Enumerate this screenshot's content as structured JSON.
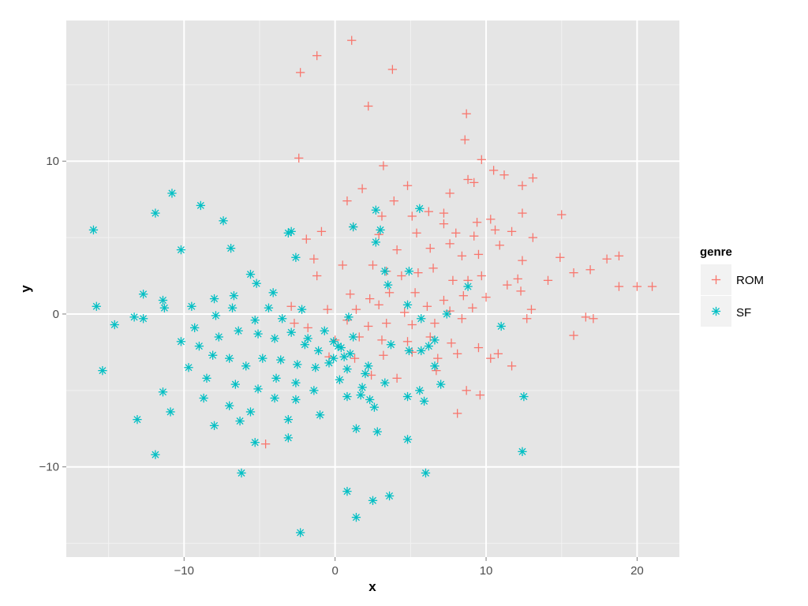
{
  "chart_data": {
    "type": "scatter",
    "title": "",
    "xlabel": "x",
    "ylabel": "y",
    "xlim": [
      -17.8,
      22.8
    ],
    "ylim": [
      -15.9,
      19.2
    ],
    "x_ticks": [
      -10,
      0,
      10,
      20
    ],
    "x_tick_labels": [
      "−10",
      "0",
      "10",
      "20"
    ],
    "y_ticks": [
      -10,
      0,
      10
    ],
    "y_tick_labels": [
      "−10",
      "0",
      "10"
    ],
    "grid": true,
    "legend": {
      "title": "genre",
      "position": "right"
    },
    "series": [
      {
        "name": "ROM",
        "marker": "plus",
        "color": "#F8766D",
        "points": [
          [
            1.1,
            17.9
          ],
          [
            -1.2,
            16.9
          ],
          [
            -2.3,
            15.8
          ],
          [
            3.8,
            16.0
          ],
          [
            2.2,
            13.6
          ],
          [
            8.7,
            13.1
          ],
          [
            8.6,
            11.4
          ],
          [
            -2.4,
            10.2
          ],
          [
            3.2,
            9.7
          ],
          [
            9.7,
            10.1
          ],
          [
            10.5,
            9.4
          ],
          [
            11.2,
            9.1
          ],
          [
            13.1,
            8.9
          ],
          [
            12.4,
            8.4
          ],
          [
            0.8,
            7.4
          ],
          [
            1.8,
            8.2
          ],
          [
            4.8,
            8.4
          ],
          [
            8.8,
            8.8
          ],
          [
            9.2,
            8.6
          ],
          [
            7.6,
            7.9
          ],
          [
            3.9,
            7.4
          ],
          [
            3.1,
            6.4
          ],
          [
            5.1,
            6.4
          ],
          [
            6.2,
            6.7
          ],
          [
            7.2,
            6.6
          ],
          [
            9.4,
            6.0
          ],
          [
            10.3,
            6.2
          ],
          [
            12.4,
            6.6
          ],
          [
            15.0,
            6.5
          ],
          [
            1.2,
            5.7
          ],
          [
            5.4,
            5.3
          ],
          [
            7.2,
            5.9
          ],
          [
            8.0,
            5.3
          ],
          [
            9.2,
            5.1
          ],
          [
            10.6,
            5.5
          ],
          [
            11.7,
            5.4
          ],
          [
            13.1,
            5.0
          ],
          [
            -0.9,
            5.4
          ],
          [
            -1.9,
            4.9
          ],
          [
            2.9,
            5.2
          ],
          [
            4.1,
            4.2
          ],
          [
            6.3,
            4.3
          ],
          [
            7.6,
            4.6
          ],
          [
            8.4,
            3.8
          ],
          [
            9.5,
            3.9
          ],
          [
            10.9,
            4.5
          ],
          [
            12.4,
            3.5
          ],
          [
            14.9,
            3.7
          ],
          [
            18.0,
            3.6
          ],
          [
            18.8,
            3.8
          ],
          [
            -1.4,
            3.6
          ],
          [
            -1.2,
            2.5
          ],
          [
            0.5,
            3.2
          ],
          [
            2.5,
            3.2
          ],
          [
            3.4,
            2.8
          ],
          [
            4.4,
            2.5
          ],
          [
            5.5,
            2.7
          ],
          [
            6.5,
            3.0
          ],
          [
            7.8,
            2.2
          ],
          [
            8.8,
            2.2
          ],
          [
            9.7,
            2.5
          ],
          [
            11.4,
            1.9
          ],
          [
            12.1,
            2.3
          ],
          [
            14.1,
            2.2
          ],
          [
            15.8,
            2.7
          ],
          [
            16.9,
            2.9
          ],
          [
            18.8,
            1.8
          ],
          [
            20.0,
            1.8
          ],
          [
            21.0,
            1.8
          ],
          [
            1.0,
            1.3
          ],
          [
            2.3,
            1.0
          ],
          [
            3.6,
            1.4
          ],
          [
            5.3,
            1.4
          ],
          [
            7.2,
            0.9
          ],
          [
            8.5,
            1.2
          ],
          [
            10.0,
            1.1
          ],
          [
            12.3,
            1.5
          ],
          [
            -2.9,
            0.5
          ],
          [
            -0.5,
            0.3
          ],
          [
            1.4,
            0.3
          ],
          [
            2.9,
            0.6
          ],
          [
            4.6,
            0.1
          ],
          [
            6.1,
            0.5
          ],
          [
            7.6,
            0.2
          ],
          [
            9.1,
            0.4
          ],
          [
            13.0,
            0.3
          ],
          [
            -2.7,
            -0.6
          ],
          [
            -1.8,
            -0.9
          ],
          [
            0.8,
            -0.4
          ],
          [
            2.2,
            -0.8
          ],
          [
            3.4,
            -0.6
          ],
          [
            5.1,
            -0.7
          ],
          [
            6.6,
            -0.6
          ],
          [
            8.4,
            -0.3
          ],
          [
            12.7,
            -0.3
          ],
          [
            16.6,
            -0.2
          ],
          [
            17.1,
            -0.3
          ],
          [
            0.0,
            -1.7
          ],
          [
            1.6,
            -1.5
          ],
          [
            3.1,
            -1.7
          ],
          [
            4.8,
            -1.8
          ],
          [
            6.3,
            -1.5
          ],
          [
            7.7,
            -1.9
          ],
          [
            9.5,
            -2.2
          ],
          [
            15.8,
            -1.4
          ],
          [
            -0.4,
            -2.8
          ],
          [
            1.3,
            -2.9
          ],
          [
            3.2,
            -2.7
          ],
          [
            5.1,
            -2.5
          ],
          [
            6.8,
            -2.9
          ],
          [
            8.1,
            -2.6
          ],
          [
            10.3,
            -2.9
          ],
          [
            10.8,
            -2.6
          ],
          [
            2.4,
            -4.0
          ],
          [
            4.1,
            -4.2
          ],
          [
            6.7,
            -3.7
          ],
          [
            11.7,
            -3.4
          ],
          [
            8.7,
            -5.0
          ],
          [
            9.6,
            -5.3
          ],
          [
            8.1,
            -6.5
          ],
          [
            -4.6,
            -8.5
          ]
        ]
      },
      {
        "name": "SF",
        "marker": "asterisk",
        "color": "#00BFC4",
        "points": [
          [
            -16.0,
            5.5
          ],
          [
            -10.8,
            7.9
          ],
          [
            -8.9,
            7.1
          ],
          [
            -11.9,
            6.6
          ],
          [
            -7.4,
            6.1
          ],
          [
            -10.2,
            4.2
          ],
          [
            -6.9,
            4.3
          ],
          [
            -5.6,
            2.6
          ],
          [
            -3.1,
            5.3
          ],
          [
            -2.6,
            3.7
          ],
          [
            -12.7,
            1.3
          ],
          [
            -11.4,
            0.9
          ],
          [
            -9.5,
            0.5
          ],
          [
            -8.0,
            1.0
          ],
          [
            -6.7,
            1.2
          ],
          [
            -5.2,
            2.0
          ],
          [
            -4.1,
            1.4
          ],
          [
            -15.8,
            0.5
          ],
          [
            -13.3,
            -0.2
          ],
          [
            -12.7,
            -0.3
          ],
          [
            -11.3,
            0.4
          ],
          [
            -9.3,
            -0.9
          ],
          [
            -7.9,
            -0.1
          ],
          [
            -6.8,
            0.4
          ],
          [
            -5.3,
            -0.4
          ],
          [
            -4.4,
            0.4
          ],
          [
            -3.5,
            -0.3
          ],
          [
            -2.2,
            0.3
          ],
          [
            -14.6,
            -0.7
          ],
          [
            -10.2,
            -1.8
          ],
          [
            -9.0,
            -2.1
          ],
          [
            -7.7,
            -1.5
          ],
          [
            -6.4,
            -1.1
          ],
          [
            -5.1,
            -1.3
          ],
          [
            -4.0,
            -1.6
          ],
          [
            -2.9,
            -1.2
          ],
          [
            -1.8,
            -1.6
          ],
          [
            -0.7,
            -1.1
          ],
          [
            0.4,
            -2.2
          ],
          [
            1.2,
            -1.5
          ],
          [
            -9.7,
            -3.5
          ],
          [
            -8.1,
            -2.7
          ],
          [
            -7.0,
            -2.9
          ],
          [
            -5.9,
            -3.4
          ],
          [
            -4.8,
            -2.9
          ],
          [
            -3.6,
            -3.0
          ],
          [
            -2.5,
            -3.3
          ],
          [
            -1.3,
            -3.5
          ],
          [
            -0.1,
            -2.9
          ],
          [
            1.0,
            -2.6
          ],
          [
            2.2,
            -3.4
          ],
          [
            -15.4,
            -3.7
          ],
          [
            -8.5,
            -4.2
          ],
          [
            -6.6,
            -4.6
          ],
          [
            -5.1,
            -4.9
          ],
          [
            -3.9,
            -4.2
          ],
          [
            -2.6,
            -4.5
          ],
          [
            -1.4,
            -5.0
          ],
          [
            0.3,
            -4.3
          ],
          [
            1.8,
            -4.8
          ],
          [
            -11.4,
            -5.1
          ],
          [
            -8.7,
            -5.5
          ],
          [
            -7.0,
            -6.0
          ],
          [
            -5.6,
            -6.4
          ],
          [
            -4.0,
            -5.5
          ],
          [
            -2.6,
            -5.6
          ],
          [
            -1.0,
            -6.6
          ],
          [
            0.8,
            -5.4
          ],
          [
            2.3,
            -5.6
          ],
          [
            -13.1,
            -6.9
          ],
          [
            -10.9,
            -6.4
          ],
          [
            -8.0,
            -7.3
          ],
          [
            -6.3,
            -7.0
          ],
          [
            -3.1,
            -6.9
          ],
          [
            1.4,
            -7.5
          ],
          [
            2.8,
            -7.7
          ],
          [
            -5.3,
            -8.4
          ],
          [
            -3.1,
            -8.1
          ],
          [
            -11.9,
            -9.2
          ],
          [
            -6.2,
            -10.4
          ],
          [
            0.8,
            -11.6
          ],
          [
            2.5,
            -12.2
          ],
          [
            3.6,
            -11.9
          ],
          [
            1.4,
            -13.3
          ],
          [
            -2.3,
            -14.3
          ],
          [
            2.7,
            6.8
          ],
          [
            5.6,
            6.9
          ],
          [
            1.2,
            5.7
          ],
          [
            3.0,
            5.5
          ],
          [
            -2.9,
            5.4
          ],
          [
            2.7,
            4.7
          ],
          [
            3.3,
            2.8
          ],
          [
            4.9,
            2.8
          ],
          [
            3.5,
            1.9
          ],
          [
            4.8,
            0.6
          ],
          [
            5.7,
            -0.3
          ],
          [
            0.9,
            -0.2
          ],
          [
            -0.1,
            -1.8
          ],
          [
            0.2,
            -2.1
          ],
          [
            0.6,
            -2.8
          ],
          [
            3.7,
            -2.0
          ],
          [
            4.9,
            -2.4
          ],
          [
            6.2,
            -2.1
          ],
          [
            7.4,
            0.0
          ],
          [
            8.8,
            1.8
          ],
          [
            6.6,
            -1.7
          ],
          [
            5.7,
            -2.4
          ],
          [
            6.6,
            -3.4
          ],
          [
            7.0,
            -4.6
          ],
          [
            5.6,
            -5.0
          ],
          [
            4.8,
            -5.4
          ],
          [
            5.9,
            -5.7
          ],
          [
            4.8,
            -8.2
          ],
          [
            6.0,
            -10.4
          ],
          [
            11.0,
            -0.8
          ],
          [
            12.5,
            -5.4
          ],
          [
            12.4,
            -9.0
          ],
          [
            -2.0,
            -2.0
          ],
          [
            -1.1,
            -2.4
          ],
          [
            -0.4,
            -3.2
          ],
          [
            0.8,
            -3.6
          ],
          [
            2.0,
            -3.9
          ],
          [
            3.3,
            -4.5
          ],
          [
            2.6,
            -6.1
          ],
          [
            1.7,
            -5.3
          ]
        ]
      }
    ]
  }
}
